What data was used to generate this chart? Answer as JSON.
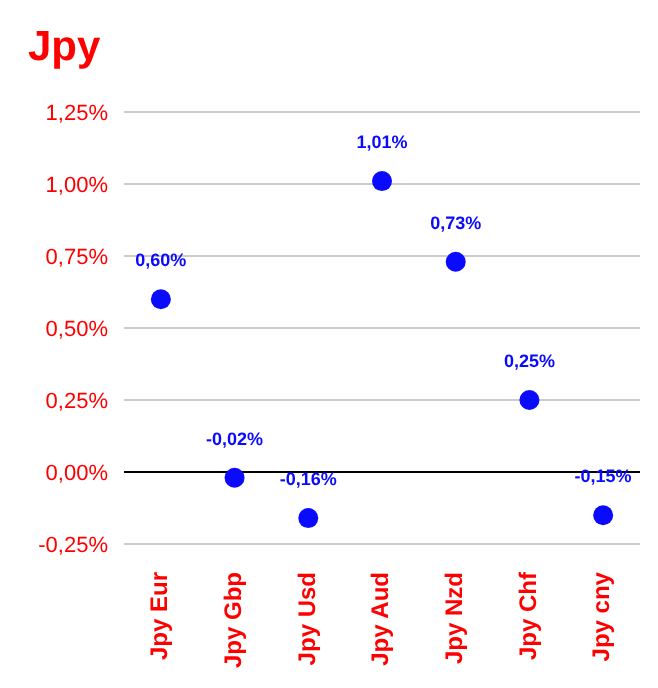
{
  "chart_data": {
    "type": "scatter",
    "title": "Jpy",
    "categories": [
      "Jpy Eur",
      "Jpy Gbp",
      "Jpy Usd",
      "Jpy Aud",
      "Jpy Nzd",
      "Jpy Chf",
      "Jpy cny"
    ],
    "series": [
      {
        "color": "#0a0aff",
        "values": [
          0.6,
          -0.02,
          -0.16,
          1.01,
          0.73,
          0.25,
          -0.15
        ],
        "value_labels": [
          "0,60%",
          "-0,02%",
          "-0,16%",
          "1,01%",
          "0,73%",
          "0,25%",
          "-0,15%"
        ]
      }
    ],
    "ylim": [
      -0.25,
      1.25
    ],
    "yticks": [
      {
        "value": -0.25,
        "label": "-0,25%"
      },
      {
        "value": 0,
        "label": "0,00%"
      },
      {
        "value": 0.25,
        "label": "0,25%"
      },
      {
        "value": 0.5,
        "label": "0,50%"
      },
      {
        "value": 0.75,
        "label": "0,75%"
      },
      {
        "value": 1,
        "label": "1,00%"
      },
      {
        "value": 1.25,
        "label": "1,25%"
      }
    ],
    "ref_lines": [
      {
        "axis": "y",
        "value": 0,
        "color": "#000000"
      }
    ],
    "grid": "y",
    "marker": "circle"
  }
}
